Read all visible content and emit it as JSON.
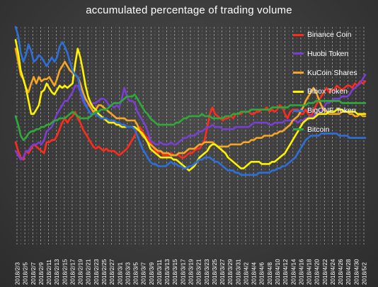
{
  "chart_data": {
    "type": "line",
    "title": "accumulated percentage of trading volume",
    "xlabel": "",
    "ylabel": "",
    "ylim": [
      0,
      100
    ],
    "grid": true,
    "legend_position": "top-right",
    "x_tick_labels": [
      "2018/2/3",
      "2018/2/5",
      "2018/2/7",
      "2018/2/9",
      "2018/2/11",
      "2018/2/13",
      "2018/2/15",
      "2018/2/17",
      "2018/2/19",
      "2018/2/21",
      "2018/2/23",
      "2018/2/25",
      "2018/2/27",
      "2018/3/1",
      "2018/3/3",
      "2018/3/5",
      "2018/3/7",
      "2018/3/9",
      "2018/3/11",
      "2018/3/13",
      "2018/3/15",
      "2018/3/17",
      "2018/3/19",
      "2018/3/21",
      "2018/3/23",
      "2018/3/25",
      "2018/3/27",
      "2018/3/29",
      "2018/3/31",
      "2018/4/2",
      "2018/4/4",
      "2018/4/6",
      "2018/4/8",
      "2018/4/10",
      "2018/4/12",
      "2018/4/14",
      "2018/4/16",
      "2018/4/18",
      "2018/4/20",
      "2018/4/22",
      "2018/4/24",
      "2018/4/26",
      "2018/4/28",
      "2018/4/30",
      "2018/5/2"
    ],
    "series": [
      {
        "name": "Binance Coin",
        "color": "#ff2b1c",
        "values": [
          47,
          43,
          40,
          39,
          43,
          42,
          44,
          46,
          45,
          44,
          43,
          42,
          47,
          47,
          48,
          48,
          50,
          53,
          56,
          58,
          56,
          58,
          59,
          61,
          58,
          56,
          53,
          51,
          49,
          47,
          45,
          44,
          45,
          44,
          43,
          44,
          43,
          43,
          43,
          42,
          41,
          42,
          43,
          44,
          46,
          48,
          50,
          53,
          54,
          52,
          50,
          49,
          47,
          45,
          43,
          42,
          43,
          41,
          41,
          41,
          42,
          41,
          41,
          41,
          40,
          40,
          41,
          42,
          42,
          43,
          44,
          44,
          46,
          48,
          54,
          60,
          63,
          60,
          59,
          58,
          57,
          58,
          58,
          59,
          58,
          60,
          60,
          60,
          61,
          61,
          61,
          60,
          60,
          61,
          61,
          62,
          62,
          63,
          61,
          62,
          61,
          62,
          64,
          63,
          60,
          58,
          61,
          62,
          62,
          62,
          60,
          60,
          62,
          60,
          59,
          61,
          64,
          66,
          68,
          70,
          72,
          70,
          71,
          71,
          73,
          72,
          71,
          72,
          73,
          73,
          72,
          74,
          73,
          75,
          74,
          75
        ]
      },
      {
        "name": "Huobi Token",
        "color": "#7a3fd0",
        "values": [
          43,
          41,
          39,
          40,
          43,
          43,
          45,
          46,
          46,
          47,
          46,
          48,
          52,
          53,
          54,
          57,
          60,
          62,
          64,
          66,
          66,
          68,
          70,
          73,
          73,
          70,
          66,
          64,
          64,
          64,
          65,
          65,
          66,
          67,
          67,
          66,
          64,
          64,
          63,
          64,
          63,
          67,
          72,
          68,
          66,
          66,
          65,
          61,
          59,
          57,
          55,
          52,
          48,
          47,
          46,
          46,
          47,
          46,
          46,
          46,
          47,
          46,
          46,
          47,
          48,
          49,
          49,
          50,
          50,
          50,
          51,
          52,
          52,
          53,
          54,
          54,
          55,
          54,
          54,
          54,
          53,
          53,
          53,
          53,
          53,
          54,
          54,
          54,
          54,
          54,
          54,
          55,
          56,
          56,
          56,
          56,
          56,
          56,
          55,
          55,
          56,
          56,
          56,
          56,
          57,
          57,
          57,
          57,
          57,
          56,
          57,
          57,
          58,
          58,
          59,
          59,
          60,
          60,
          61,
          63,
          65,
          65,
          66,
          67,
          67,
          67,
          68,
          68,
          68,
          69,
          71,
          72,
          73,
          74,
          76,
          78
        ]
      },
      {
        "name": "KuCoin Shares",
        "color": "#f5a623",
        "values": [
          90,
          84,
          78,
          76,
          72,
          70,
          74,
          77,
          74,
          77,
          75,
          76,
          76,
          77,
          75,
          73,
          76,
          80,
          82,
          84,
          82,
          80,
          79,
          78,
          77,
          74,
          70,
          67,
          65,
          63,
          61,
          62,
          64,
          64,
          63,
          62,
          61,
          60,
          59,
          58,
          58,
          58,
          58,
          57,
          57,
          57,
          57,
          55,
          52,
          50,
          49,
          47,
          46,
          45,
          44,
          43,
          43,
          42,
          42,
          42,
          41,
          41,
          41,
          42,
          42,
          42,
          43,
          44,
          44,
          44,
          45,
          46,
          46,
          47,
          47,
          47,
          47,
          46,
          45,
          45,
          45,
          45,
          45,
          46,
          46,
          46,
          46,
          46,
          47,
          47,
          47,
          48,
          48,
          49,
          49,
          49,
          50,
          50,
          50,
          50,
          51,
          51,
          52,
          52,
          53,
          54,
          55,
          57,
          58,
          59,
          61,
          63,
          66,
          68,
          70,
          72,
          70,
          67,
          64,
          62,
          61,
          60,
          60,
          60,
          60,
          60,
          61,
          61,
          61,
          60,
          60,
          59,
          59,
          60,
          59,
          59
        ]
      },
      {
        "name": "Bibox Token",
        "color": "#fff200",
        "values": [
          94,
          88,
          80,
          76,
          72,
          66,
          60,
          60,
          62,
          64,
          70,
          71,
          74,
          72,
          70,
          69,
          71,
          73,
          72,
          73,
          72,
          73,
          74,
          83,
          90,
          86,
          80,
          73,
          68,
          65,
          63,
          62,
          60,
          59,
          58,
          57,
          56,
          56,
          56,
          55,
          55,
          54,
          54,
          54,
          54,
          54,
          54,
          53,
          52,
          51,
          49,
          47,
          44,
          43,
          42,
          41,
          40,
          40,
          40,
          40,
          40,
          39,
          39,
          38,
          37,
          36,
          35,
          34,
          35,
          36,
          38,
          40,
          41,
          42,
          43,
          45,
          46,
          46,
          45,
          44,
          43,
          42,
          40,
          39,
          38,
          37,
          36,
          35,
          35,
          36,
          37,
          38,
          38,
          38,
          38,
          37,
          37,
          37,
          37,
          38,
          38,
          39,
          40,
          41,
          42,
          44,
          46,
          48,
          50,
          52,
          54,
          56,
          57,
          58,
          58,
          58,
          59,
          60,
          60,
          60,
          60,
          61,
          61,
          61,
          62,
          62,
          62,
          61,
          61,
          61,
          61,
          61,
          60,
          60,
          60,
          60
        ]
      },
      {
        "name": "BigONE Token",
        "color": "#2f6fd8",
        "values": [
          100,
          96,
          88,
          84,
          87,
          92,
          89,
          84,
          85,
          87,
          86,
          84,
          82,
          84,
          86,
          84,
          86,
          91,
          93,
          91,
          88,
          84,
          80,
          78,
          77,
          71,
          68,
          64,
          62,
          60,
          60,
          60,
          59,
          58,
          58,
          58,
          57,
          57,
          57,
          56,
          56,
          55,
          55,
          54,
          54,
          54,
          53,
          50,
          47,
          44,
          42,
          40,
          38,
          37,
          37,
          36,
          36,
          36,
          36,
          37,
          38,
          37,
          37,
          36,
          36,
          35,
          35,
          36,
          36,
          37,
          38,
          39,
          39,
          40,
          40,
          40,
          39,
          38,
          38,
          37,
          36,
          35,
          34,
          34,
          34,
          33,
          33,
          32,
          32,
          32,
          32,
          32,
          32,
          32,
          33,
          33,
          33,
          33,
          33,
          34,
          34,
          35,
          35,
          36,
          36,
          37,
          38,
          39,
          40,
          42,
          44,
          46,
          48,
          49,
          50,
          50,
          50,
          50,
          51,
          51,
          51,
          51,
          51,
          51,
          51,
          50,
          50,
          50,
          50,
          49,
          49,
          49,
          49,
          49,
          49,
          49
        ]
      },
      {
        "name": "Bitcoin",
        "color": "#2faa3a",
        "values": [
          59,
          55,
          50,
          48,
          49,
          51,
          52,
          52,
          53,
          53,
          54,
          54,
          55,
          55,
          56,
          57,
          57,
          58,
          58,
          58,
          59,
          60,
          61,
          60,
          59,
          58,
          58,
          58,
          58,
          59,
          60,
          61,
          61,
          62,
          62,
          62,
          63,
          64,
          65,
          65,
          65,
          66,
          67,
          68,
          68,
          68,
          69,
          67,
          65,
          63,
          61,
          60,
          58,
          57,
          56,
          55,
          55,
          55,
          55,
          55,
          55,
          55,
          56,
          56,
          57,
          58,
          58,
          59,
          59,
          59,
          59,
          59,
          60,
          59,
          59,
          59,
          58,
          58,
          58,
          58,
          58,
          59,
          59,
          59,
          60,
          60,
          60,
          61,
          61,
          61,
          61,
          62,
          62,
          62,
          62,
          62,
          62,
          62,
          62,
          63,
          63,
          63,
          63,
          63,
          63,
          63,
          64,
          64,
          64,
          64,
          64,
          64,
          64,
          65,
          65,
          65,
          66,
          66,
          66,
          66,
          66,
          66,
          66,
          66,
          66,
          66,
          65,
          65,
          65,
          65,
          65,
          65,
          65,
          65,
          65,
          65
        ]
      }
    ]
  }
}
